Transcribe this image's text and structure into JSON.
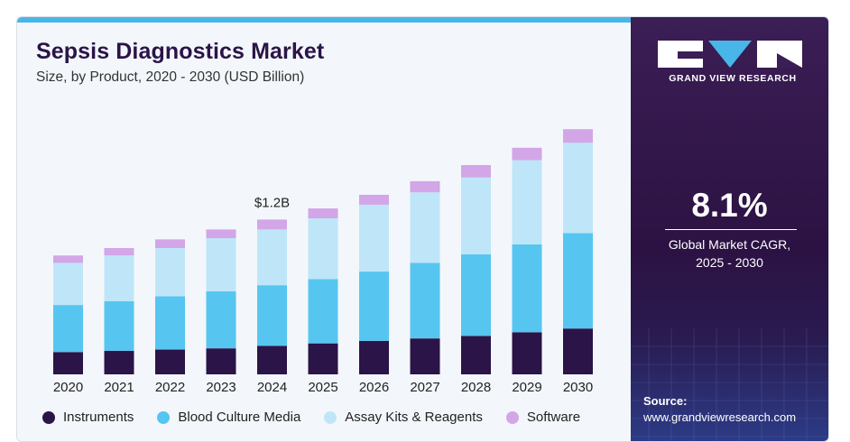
{
  "chart_data": {
    "type": "bar",
    "stacked": true,
    "title": "Sepsis Diagnostics Market",
    "subtitle": "Size, by Product, 2020 - 2030 (USD Billion)",
    "categories": [
      "2020",
      "2021",
      "2022",
      "2023",
      "2024",
      "2025",
      "2026",
      "2027",
      "2028",
      "2029",
      "2030"
    ],
    "series": [
      {
        "name": "Instruments",
        "color": "#2b1447",
        "values": [
          0.18,
          0.19,
          0.2,
          0.21,
          0.23,
          0.25,
          0.27,
          0.29,
          0.31,
          0.34,
          0.37
        ]
      },
      {
        "name": "Blood Culture Media",
        "color": "#56c6f1",
        "values": [
          0.38,
          0.4,
          0.43,
          0.46,
          0.49,
          0.52,
          0.56,
          0.61,
          0.66,
          0.71,
          0.77
        ]
      },
      {
        "name": "Assay Kits & Reagents",
        "color": "#bfe6f8",
        "values": [
          0.34,
          0.37,
          0.39,
          0.43,
          0.45,
          0.49,
          0.54,
          0.57,
          0.62,
          0.68,
          0.73
        ]
      },
      {
        "name": "Software",
        "color": "#d2a6e7",
        "values": [
          0.06,
          0.06,
          0.07,
          0.07,
          0.08,
          0.08,
          0.08,
          0.09,
          0.1,
          0.1,
          0.11
        ]
      }
    ],
    "annotations": [
      {
        "category": "2024",
        "text": "$1.2B"
      }
    ],
    "ylim": [
      0,
      2.2
    ],
    "grid": false,
    "legend": "bottom"
  },
  "brand": {
    "name": "GRAND VIEW RESEARCH",
    "logo_letters": "GVR"
  },
  "cagr": {
    "value": "8.1%",
    "label_line1": "Global Market CAGR,",
    "label_line2": "2025 - 2030"
  },
  "source": {
    "label": "Source:",
    "url": "www.grandviewresearch.com"
  },
  "colors": {
    "panel_dark": "#2c1243",
    "accent_bar": "#49b6e9"
  }
}
